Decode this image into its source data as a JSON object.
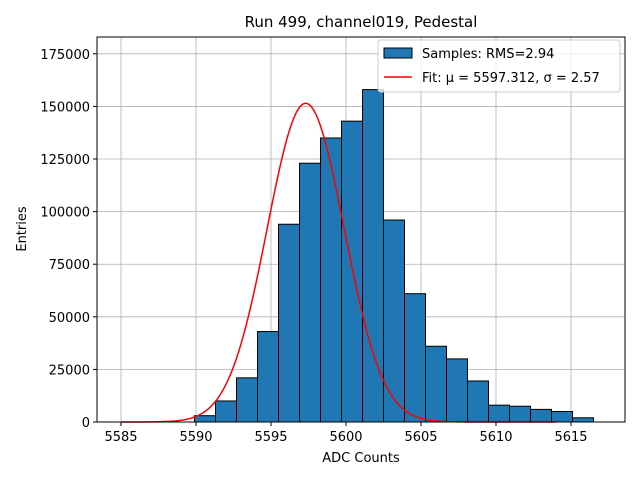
{
  "chart_data": {
    "type": "bar",
    "title": "Run 499, channel019, Pedestal",
    "xlabel": "ADC Counts",
    "ylabel": "Entries",
    "xlim": [
      5583.4,
      5618.6
    ],
    "ylim": [
      0,
      183000
    ],
    "xticks": [
      5585,
      5590,
      5595,
      5600,
      5605,
      5610,
      5615
    ],
    "yticks": [
      0,
      25000,
      50000,
      75000,
      100000,
      125000,
      150000,
      175000
    ],
    "grid": true,
    "legend_position": "top-right",
    "bar_color": "#1f77b4",
    "fit_color": "#ff0000",
    "histogram": {
      "name": "Samples: RMS=2.94",
      "bin_width": 1.4,
      "bin_left_edges": [
        5589.9,
        5591.3,
        5592.7,
        5594.1,
        5595.5,
        5596.9,
        5598.3,
        5599.7,
        5601.1,
        5602.5,
        5603.9,
        5605.3,
        5606.7,
        5608.1,
        5609.5,
        5610.9,
        5612.3,
        5613.7,
        5615.1,
        5616.5
      ],
      "values": [
        3000,
        10000,
        21000,
        43000,
        94000,
        123000,
        135000,
        143000,
        158000,
        96000,
        61000,
        36000,
        30000,
        19500,
        8000,
        7500,
        6000,
        5000,
        2000,
        0
      ]
    },
    "fit": {
      "name": "Fit: μ = 5597.312, σ = 2.57",
      "mu": 5597.312,
      "sigma": 2.57,
      "amplitude": 151500,
      "x_range": [
        5585,
        5614
      ]
    }
  }
}
